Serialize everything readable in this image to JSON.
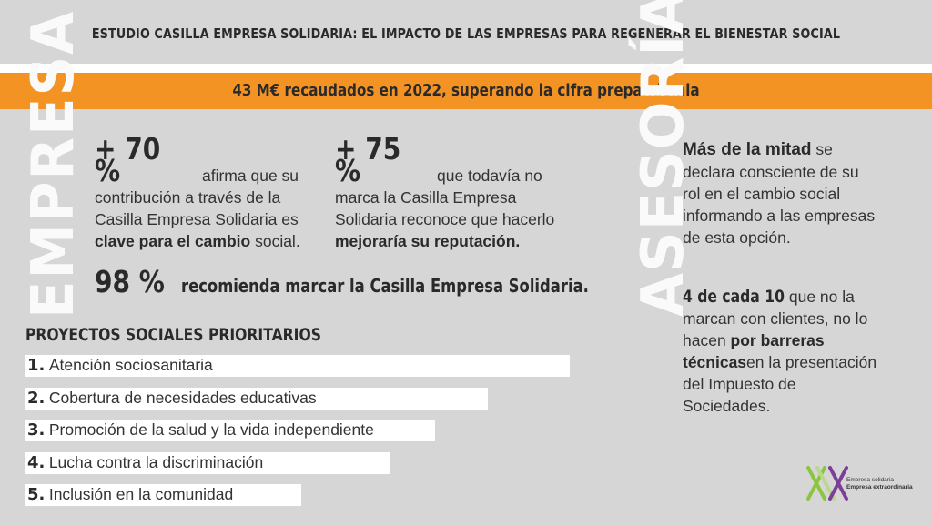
{
  "title": "ESTUDIO CASILLA EMPRESA SOLIDARIA: EL IMPACTO DE LAS EMPRESAS PARA REGENERAR EL BIENESTAR SOCIAL",
  "banner": "43 M€ recaudados en 2022, superando la cifra prepandemia",
  "empresa": {
    "vertical_label": "EMPRESA",
    "stat1": {
      "value": "+ 70 %",
      "text_a": "afirma que su contribución a través de la Casilla Empresa Solidaria es ",
      "text_bold": "clave para el cambio",
      "text_b": " social."
    },
    "stat2": {
      "value": "+ 75 %",
      "text_a": "que todavía no marca la Casilla Empresa Solidaria reconoce que hacerlo ",
      "text_bold": "mejoraría su reputación."
    },
    "stat3": {
      "value": "98 %",
      "text": "recomienda marcar la Casilla Empresa Solidaria."
    }
  },
  "proyectos": {
    "heading": "PROYECTOS SOCIALES PRIORITARIOS",
    "items": [
      {
        "num": "1.",
        "label": "Atención sociosanitaria"
      },
      {
        "num": "2.",
        "label": "Cobertura de necesidades educativas"
      },
      {
        "num": "3.",
        "label": "Promoción de la salud y la vida independiente"
      },
      {
        "num": "4.",
        "label": "Lucha contra la discriminación"
      },
      {
        "num": "5.",
        "label": "Inclusión en la comunidad"
      }
    ]
  },
  "asesoria": {
    "vertical_label": "ASESORÍA",
    "stat1": {
      "bold": "Más de la mitad",
      "text": " se declara consciente de su rol en el cambio social informando a las empresas de esta opción."
    },
    "stat2": {
      "bold": "4 de cada 10",
      "text_a": " que no la marcan con clientes, no lo hacen ",
      "text_bold": "por barreras técnicas",
      "text_b": "en la presentación del Impuesto de Sociedades."
    }
  },
  "logo": {
    "line1": "Empresa solidaria",
    "line2": "Empresa extraordinaria",
    "colors": [
      "#8bc53f",
      "#7b3f98"
    ]
  }
}
